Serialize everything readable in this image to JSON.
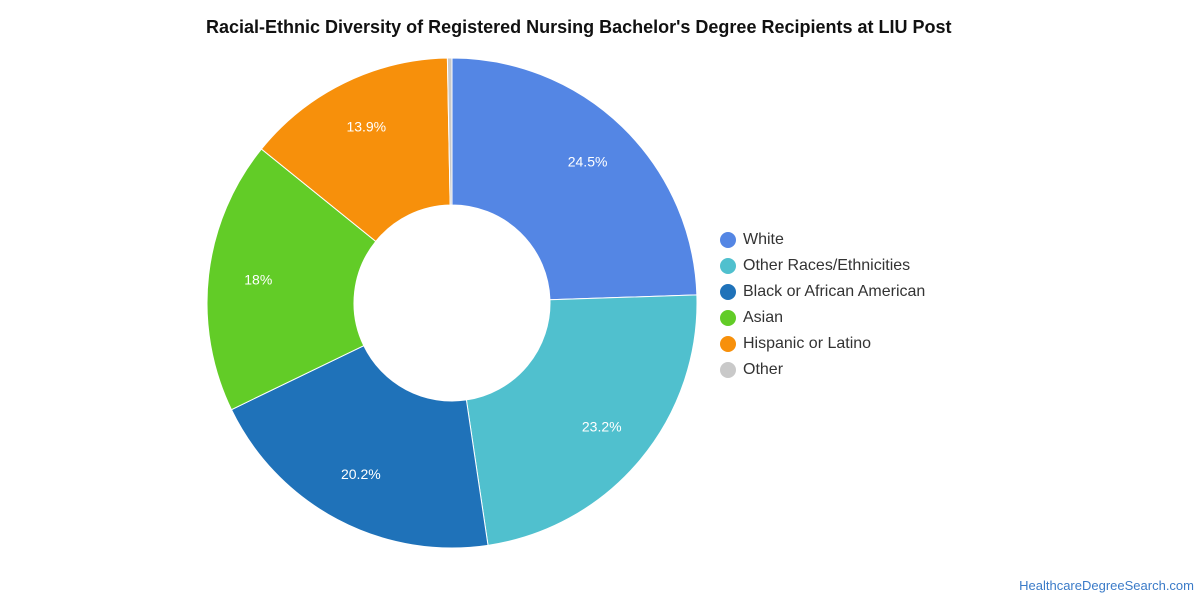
{
  "chart_data": {
    "type": "pie",
    "title": "Racial-Ethnic Diversity of Registered Nursing Bachelor's Degree Recipients at LIU Post",
    "donut": true,
    "legend_position": "right",
    "slices": [
      {
        "name": "White",
        "value": 24.5,
        "label": "24.5%",
        "color": "#5486e4"
      },
      {
        "name": "Other Races/Ethnicities",
        "value": 23.2,
        "label": "23.2%",
        "color": "#50c0ce"
      },
      {
        "name": "Black or African American",
        "value": 20.2,
        "label": "20.2%",
        "color": "#1f72b9"
      },
      {
        "name": "Asian",
        "value": 18,
        "label": "18%",
        "color": "#62cc27"
      },
      {
        "name": "Hispanic or Latino",
        "value": 13.9,
        "label": "13.9%",
        "color": "#f7900b"
      },
      {
        "name": "Other",
        "value": 0.3,
        "label": "",
        "color": "#c9c9c9"
      }
    ]
  },
  "footer": {
    "source": "HealthcareDegreeSearch.com"
  }
}
